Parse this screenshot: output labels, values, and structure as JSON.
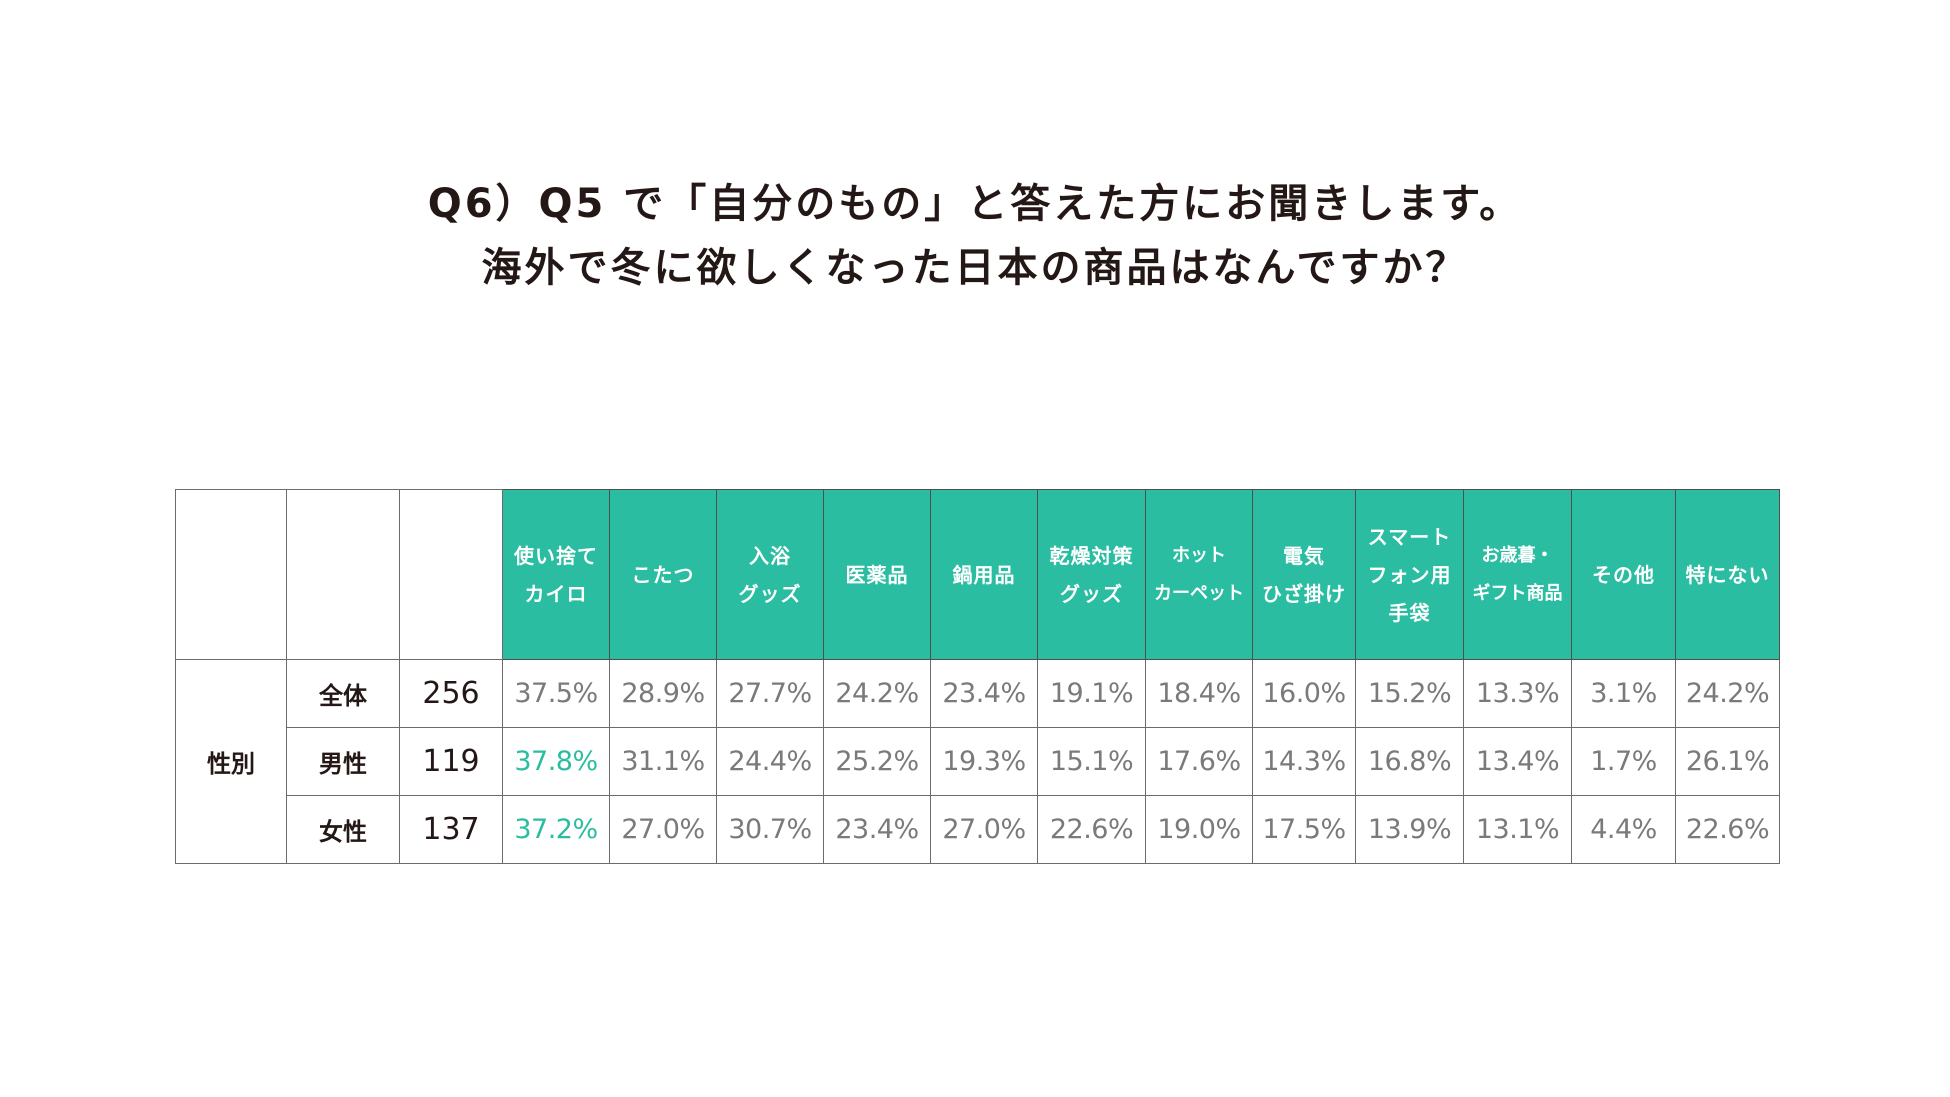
{
  "title": {
    "line1": "Q6）Q5 で「自分のもの」と答えた方にお聞きします。",
    "line2": "海外で冬に欲しくなった日本の商品はなんですか？"
  },
  "colors": {
    "header_bg": "#2bbda1",
    "highlight": "#2bbda1",
    "value_text": "#7a7a7a"
  },
  "chart_data": {
    "type": "table",
    "group_label": "性別",
    "columns": [
      [
        "使い捨て",
        "カイロ"
      ],
      [
        "こたつ"
      ],
      [
        "入浴",
        "グッズ"
      ],
      [
        "医薬品"
      ],
      [
        "鍋用品"
      ],
      [
        "乾燥対策",
        "グッズ"
      ],
      [
        "ホット",
        "カーペット"
      ],
      [
        "電気",
        "ひざ掛け"
      ],
      [
        "スマート",
        "フォン用",
        "手袋"
      ],
      [
        "お歳暮・",
        "ギフト商品"
      ],
      [
        "その他"
      ],
      [
        "特にない"
      ]
    ],
    "rows": [
      {
        "label": "全体",
        "n": "256",
        "values": [
          "37.5%",
          "28.9%",
          "27.7%",
          "24.2%",
          "23.4%",
          "19.1%",
          "18.4%",
          "16.0%",
          "15.2%",
          "13.3%",
          "3.1%",
          "24.2%"
        ],
        "highlight": [
          false,
          false,
          false,
          false,
          false,
          false,
          false,
          false,
          false,
          false,
          false,
          false
        ]
      },
      {
        "label": "男性",
        "n": "119",
        "values": [
          "37.8%",
          "31.1%",
          "24.4%",
          "25.2%",
          "19.3%",
          "15.1%",
          "17.6%",
          "14.3%",
          "16.8%",
          "13.4%",
          "1.7%",
          "26.1%"
        ],
        "highlight": [
          true,
          false,
          false,
          false,
          false,
          false,
          false,
          false,
          false,
          false,
          false,
          false
        ]
      },
      {
        "label": "女性",
        "n": "137",
        "values": [
          "37.2%",
          "27.0%",
          "30.7%",
          "23.4%",
          "27.0%",
          "22.6%",
          "19.0%",
          "17.5%",
          "13.9%",
          "13.1%",
          "4.4%",
          "22.6%"
        ],
        "highlight": [
          true,
          false,
          false,
          false,
          false,
          false,
          false,
          false,
          false,
          false,
          false,
          false
        ]
      }
    ]
  }
}
